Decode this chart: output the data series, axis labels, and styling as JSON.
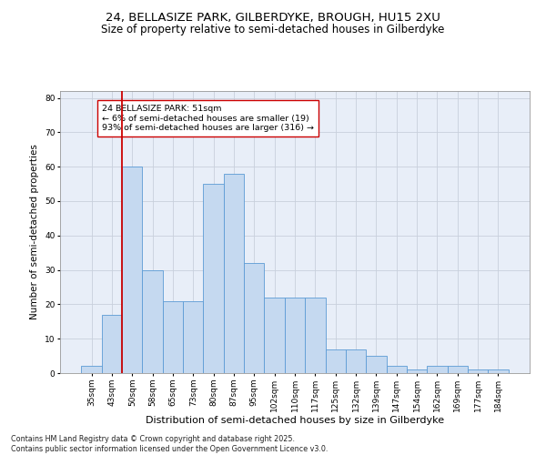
{
  "title1": "24, BELLASIZE PARK, GILBERDYKE, BROUGH, HU15 2XU",
  "title2": "Size of property relative to semi-detached houses in Gilberdyke",
  "xlabel": "Distribution of semi-detached houses by size in Gilberdyke",
  "ylabel": "Number of semi-detached properties",
  "categories": [
    "35sqm",
    "43sqm",
    "50sqm",
    "58sqm",
    "65sqm",
    "73sqm",
    "80sqm",
    "87sqm",
    "95sqm",
    "102sqm",
    "110sqm",
    "117sqm",
    "125sqm",
    "132sqm",
    "139sqm",
    "147sqm",
    "154sqm",
    "162sqm",
    "169sqm",
    "177sqm",
    "184sqm"
  ],
  "values": [
    2,
    17,
    60,
    30,
    21,
    21,
    55,
    58,
    32,
    22,
    22,
    22,
    7,
    7,
    5,
    2,
    1,
    2,
    2,
    1,
    1
  ],
  "bar_color": "#c5d9f0",
  "bar_edge_color": "#5b9bd5",
  "vline_color": "#cc0000",
  "annotation_text": "24 BELLASIZE PARK: 51sqm\n← 6% of semi-detached houses are smaller (19)\n93% of semi-detached houses are larger (316) →",
  "annotation_box_color": "#ffffff",
  "annotation_box_edge_color": "#cc0000",
  "ylim": [
    0,
    82
  ],
  "yticks": [
    0,
    10,
    20,
    30,
    40,
    50,
    60,
    70,
    80
  ],
  "grid_color": "#c8d0dc",
  "bg_color": "#e8eef8",
  "footnote": "Contains HM Land Registry data © Crown copyright and database right 2025.\nContains public sector information licensed under the Open Government Licence v3.0.",
  "title1_fontsize": 9.5,
  "title2_fontsize": 8.5,
  "xlabel_fontsize": 8,
  "ylabel_fontsize": 7.5,
  "tick_fontsize": 6.5,
  "annotation_fontsize": 6.8,
  "footnote_fontsize": 5.8
}
